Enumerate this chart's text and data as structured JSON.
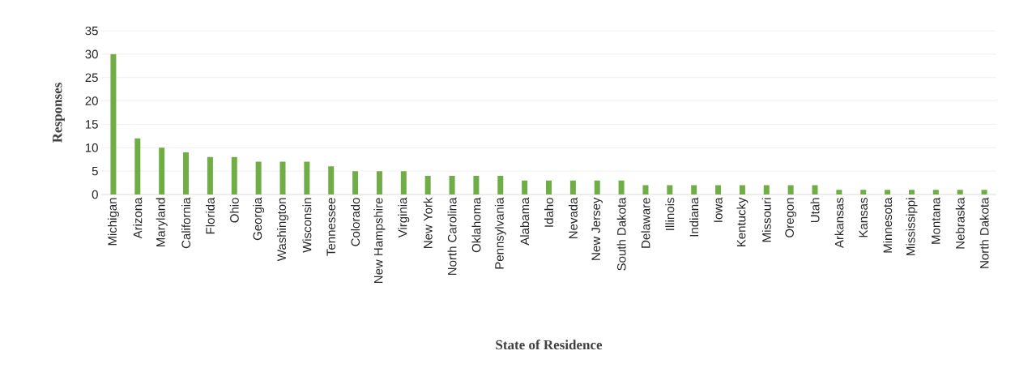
{
  "chart_data": {
    "type": "bar",
    "xlabel": "State of Residence",
    "ylabel": "Responses",
    "categories": [
      "Michigan",
      "Arizona",
      "Maryland",
      "California",
      "Florida",
      "Ohio",
      "Georgia",
      "Washington",
      "Wisconsin",
      "Tennessee",
      "Colorado",
      "New Hampshire",
      "Virginia",
      "New York",
      "North Carolina",
      "Oklahoma",
      "Pennsylvania",
      "Alabama",
      "Idaho",
      "Nevada",
      "New Jersey",
      "South Dakota",
      "Delaware",
      "Illinois",
      "Indiana",
      "Iowa",
      "Kentucky",
      "Missouri",
      "Oregon",
      "Utah",
      "Arkansas",
      "Kansas",
      "Minnesota",
      "Mississippi",
      "Montana",
      "Nebraska",
      "North Dakota"
    ],
    "values": [
      30,
      12,
      10,
      9,
      8,
      8,
      7,
      7,
      7,
      6,
      5,
      5,
      5,
      4,
      4,
      4,
      4,
      3,
      3,
      3,
      3,
      3,
      2,
      2,
      2,
      2,
      2,
      2,
      2,
      2,
      1,
      1,
      1,
      1,
      1,
      1,
      1
    ],
    "color": "#70ad47",
    "ylim": [
      0,
      35
    ],
    "yticks": [
      0,
      5,
      10,
      15,
      20,
      25,
      30,
      35
    ],
    "grid": "y"
  }
}
